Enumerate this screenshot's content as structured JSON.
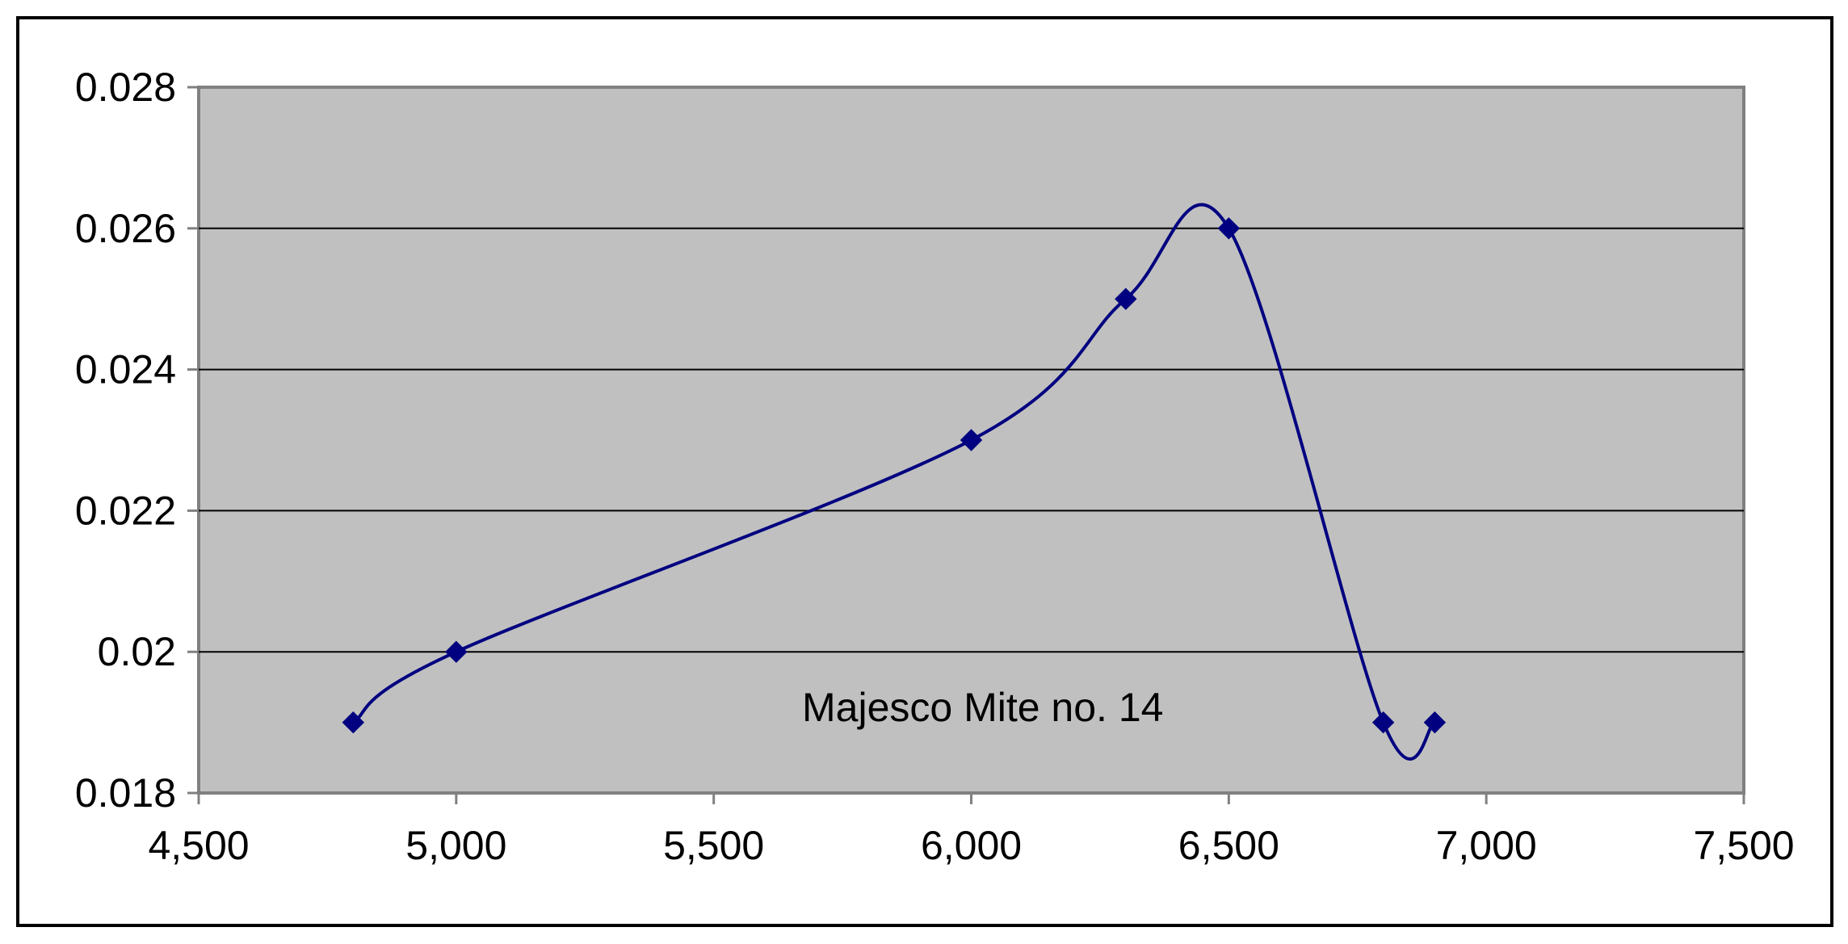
{
  "chart_data": {
    "type": "line",
    "title": "",
    "xlabel": "",
    "ylabel": "",
    "xlim": [
      4500,
      7500
    ],
    "ylim": [
      0.018,
      0.028
    ],
    "x_ticks": [
      4500,
      5000,
      5500,
      6000,
      6500,
      7000,
      7500
    ],
    "x_tick_labels": [
      "4,500",
      "5,000",
      "5,500",
      "6,000",
      "6,500",
      "7,000",
      "7,500"
    ],
    "y_ticks": [
      0.018,
      0.02,
      0.022,
      0.024,
      0.026,
      0.028
    ],
    "y_tick_labels": [
      "0.018",
      "0.02",
      "0.022",
      "0.024",
      "0.026",
      "0.028"
    ],
    "grid": "horizontal",
    "smoothed": true,
    "annotation": "Majesco Mite no. 14",
    "series": [
      {
        "x": [
          4800,
          5000,
          6000,
          6300,
          6500,
          6800,
          6900
        ],
        "y": [
          0.019,
          0.02,
          0.023,
          0.025,
          0.026,
          0.019,
          0.019
        ],
        "marker": "diamond"
      }
    ],
    "colors": {
      "plot_background": "#c0c0c0",
      "series": "#000080",
      "gridline": "#000000",
      "axis": "#808080",
      "frame": "#000000"
    }
  }
}
